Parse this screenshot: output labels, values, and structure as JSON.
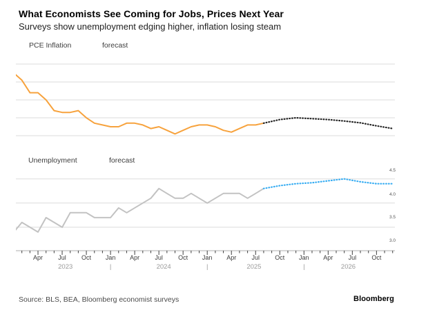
{
  "header": {
    "title": "What Economists See Coming for Jobs, Prices Next Year",
    "subtitle": "Surveys show unemployment edging higher, inflation losing steam"
  },
  "footer": {
    "source": "Source: BLS, BEA, Bloomberg economist surveys",
    "brand": "Bloomberg"
  },
  "colors": {
    "pce_actual": "#F7A23C",
    "pce_forecast": "#222222",
    "unemployment_actual": "#C2C2C2",
    "unemployment_forecast": "#38ADF2",
    "gridline": "#DBDBDB",
    "axis_line": "#C9C9C9",
    "tick": "#3F3F3F"
  },
  "x_axis": {
    "start": "Jan 2023",
    "interval": "monthly",
    "month_labels": [
      {
        "label": "Apr",
        "month_index": 3
      },
      {
        "label": "Jul",
        "month_index": 6
      },
      {
        "label": "Oct",
        "month_index": 9
      },
      {
        "label": "Jan",
        "month_index": 12
      },
      {
        "label": "Apr",
        "month_index": 15
      },
      {
        "label": "Jul",
        "month_index": 18
      },
      {
        "label": "Oct",
        "month_index": 21
      },
      {
        "label": "Jan",
        "month_index": 24
      },
      {
        "label": "Apr",
        "month_index": 27
      },
      {
        "label": "Jul",
        "month_index": 30
      },
      {
        "label": "Oct",
        "month_index": 33
      },
      {
        "label": "Jan",
        "month_index": 36
      },
      {
        "label": "Apr",
        "month_index": 39
      },
      {
        "label": "Jul",
        "month_index": 42
      },
      {
        "label": "Oct",
        "month_index": 45
      }
    ],
    "year_labels": [
      {
        "label": "2023",
        "month_index": 6.4
      },
      {
        "label": "|",
        "month_index": 12
      },
      {
        "label": "2024",
        "month_index": 18.6
      },
      {
        "label": "|",
        "month_index": 24
      },
      {
        "label": "2025",
        "month_index": 29.8
      },
      {
        "label": "|",
        "month_index": 36
      },
      {
        "label": "2026",
        "month_index": 41.5
      }
    ]
  },
  "chart_data": [
    {
      "type": "line",
      "title": "PCE Inflation",
      "unit": "%",
      "legend": {
        "series_label": "PCE Inflation",
        "forecast_label": "forecast"
      },
      "x_start": "Jan 2023",
      "x_interval": "monthly",
      "ylim": [
        2,
        6.2
      ],
      "y_gridlines": [
        2,
        3,
        4,
        5,
        6
      ],
      "y_tick_labels": [],
      "grid": true,
      "legend_position": "top-left",
      "series": [
        {
          "name": "PCE Inflation",
          "kind": "actual",
          "line_style": "solid",
          "color": "#F7A23C",
          "start_month_index": 0,
          "values": [
            5.5,
            5.1,
            4.4,
            4.4,
            4.0,
            3.4,
            3.3,
            3.3,
            3.4,
            3.0,
            2.7,
            2.6,
            2.5,
            2.5,
            2.7,
            2.7,
            2.6,
            2.4,
            2.5,
            2.3,
            2.1,
            2.3,
            2.5,
            2.6,
            2.6,
            2.5,
            2.3,
            2.2,
            2.4,
            2.6,
            2.6,
            2.7
          ]
        },
        {
          "name": "forecast",
          "kind": "forecast",
          "line_style": "dotted",
          "color": "#222222",
          "month_indices": [
            31,
            33,
            35,
            37,
            39,
            41,
            43,
            45,
            47
          ],
          "values": [
            2.7,
            2.9,
            3.0,
            2.95,
            2.9,
            2.82,
            2.72,
            2.55,
            2.4
          ]
        }
      ]
    },
    {
      "type": "line",
      "title": "Unemployment",
      "unit": "%",
      "legend": {
        "series_label": "Unemployment",
        "forecast_label": "forecast"
      },
      "x_start": "Jan 2023",
      "x_interval": "monthly",
      "ylim": [
        3,
        4.6
      ],
      "y_gridlines": [
        3,
        3.5,
        4,
        4.5
      ],
      "y_tick_labels": [
        "4.5",
        "4.0",
        "3.5",
        "3.0"
      ],
      "grid": true,
      "legend_position": "top-left",
      "series": [
        {
          "name": "Unemployment",
          "kind": "actual",
          "line_style": "solid",
          "color": "#C2C2C2",
          "start_month_index": 0,
          "values": [
            3.4,
            3.6,
            3.5,
            3.4,
            3.7,
            3.6,
            3.5,
            3.8,
            3.8,
            3.8,
            3.7,
            3.7,
            3.7,
            3.9,
            3.8,
            3.9,
            4.0,
            4.1,
            4.3,
            4.2,
            4.1,
            4.1,
            4.2,
            4.1,
            4.0,
            4.1,
            4.2,
            4.2,
            4.2,
            4.1,
            4.2,
            4.3
          ]
        },
        {
          "name": "forecast",
          "kind": "forecast",
          "line_style": "dotted",
          "color": "#38ADF2",
          "month_indices": [
            31,
            33,
            35,
            37,
            39,
            41,
            43,
            45,
            47
          ],
          "values": [
            4.3,
            4.36,
            4.4,
            4.42,
            4.46,
            4.5,
            4.44,
            4.4,
            4.4
          ]
        }
      ]
    }
  ]
}
